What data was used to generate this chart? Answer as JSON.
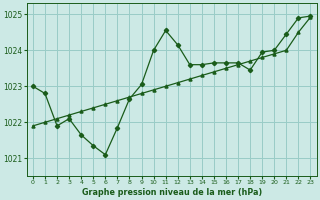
{
  "title": "Graphe pression niveau de la mer (hPa)",
  "bg_color": "#cce9e5",
  "plot_bg_color": "#cce9e5",
  "label_bg_color": "#7bbdb8",
  "grid_color": "#99ccc7",
  "line_color": "#1a5c1a",
  "xlim": [
    -0.5,
    23.5
  ],
  "ylim": [
    1020.5,
    1025.3
  ],
  "yticks": [
    1021,
    1022,
    1023,
    1024,
    1025
  ],
  "xticks": [
    0,
    1,
    2,
    3,
    4,
    5,
    6,
    7,
    8,
    9,
    10,
    11,
    12,
    13,
    14,
    15,
    16,
    17,
    18,
    19,
    20,
    21,
    22,
    23
  ],
  "hours": [
    0,
    1,
    2,
    3,
    4,
    5,
    6,
    7,
    8,
    9,
    10,
    11,
    12,
    13,
    14,
    15,
    16,
    17,
    18,
    19,
    20,
    21,
    22,
    23
  ],
  "pressure": [
    1023.0,
    1022.8,
    1021.9,
    1022.1,
    1021.65,
    1021.35,
    1021.1,
    1021.85,
    1022.65,
    1023.05,
    1024.0,
    1024.55,
    1024.15,
    1023.6,
    1023.6,
    1023.65,
    1023.65,
    1023.65,
    1023.45,
    1023.95,
    1024.0,
    1024.45,
    1024.9,
    1024.95
  ],
  "trend": [
    1021.9,
    1022.0,
    1022.1,
    1022.2,
    1022.3,
    1022.4,
    1022.5,
    1022.6,
    1022.7,
    1022.8,
    1022.9,
    1023.0,
    1023.1,
    1023.2,
    1023.3,
    1023.4,
    1023.5,
    1023.6,
    1023.7,
    1023.8,
    1023.9,
    1024.0,
    1024.5,
    1024.92
  ]
}
